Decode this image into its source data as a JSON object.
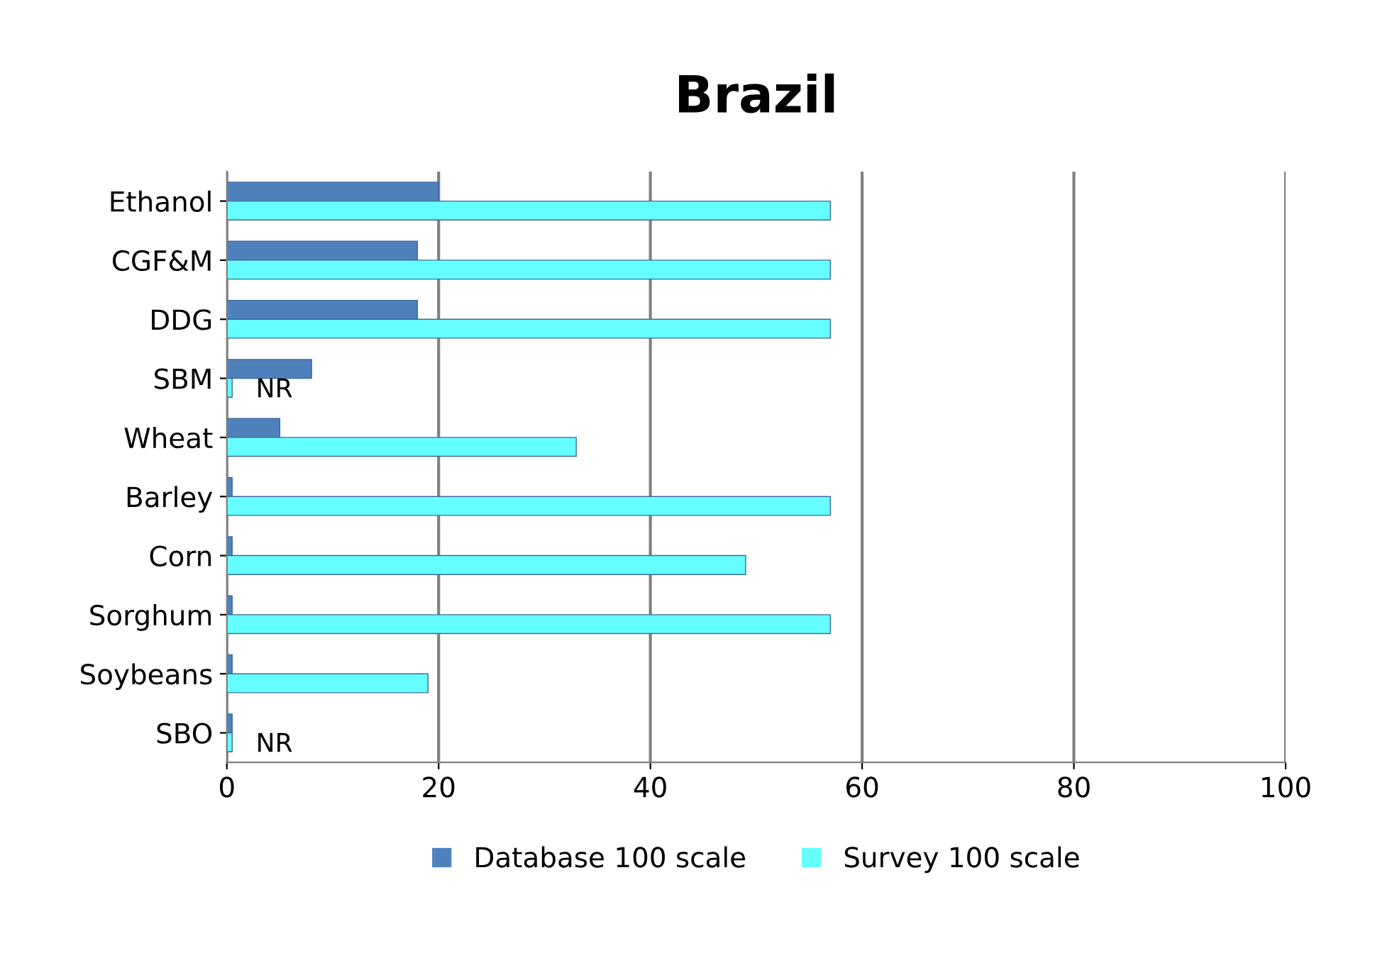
{
  "chart_data": {
    "type": "bar",
    "orientation": "horizontal",
    "title": "Brazil",
    "categories": [
      "Ethanol",
      "CGF&M",
      "DDG",
      "SBM",
      "Wheat",
      "Barley",
      "Corn",
      "Sorghum",
      "Soybeans",
      "SBO"
    ],
    "series": [
      {
        "name": "Database 100 scale",
        "color": "#4f81bd",
        "values": [
          20,
          18,
          18,
          8,
          5,
          0.5,
          0.5,
          0.5,
          0.5,
          0.5
        ]
      },
      {
        "name": "Survey 100 scale",
        "color": "#66ffff",
        "values": [
          57,
          57,
          57,
          0.5,
          33,
          57,
          49,
          57,
          19,
          0.5
        ]
      }
    ],
    "annotations": [
      {
        "text": "NR",
        "x": 0.5,
        "y": "SBM"
      },
      {
        "text": "NR",
        "x": 0.5,
        "y": "SBO"
      }
    ],
    "xlim": [
      0,
      100
    ],
    "xticks": [
      0,
      20,
      40,
      60,
      80,
      100
    ],
    "grid": "x",
    "legend": "bottom"
  }
}
